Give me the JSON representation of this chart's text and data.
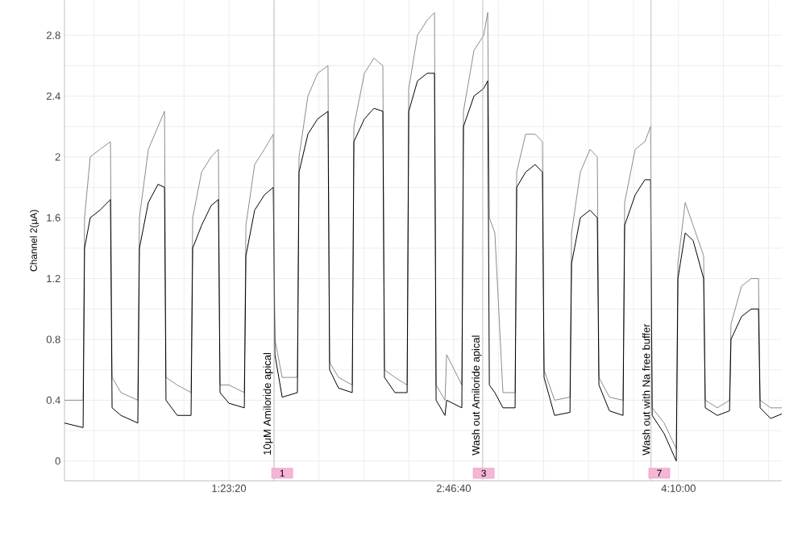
{
  "chart_data": {
    "type": "line",
    "ylabel": "Channel 2(μA)",
    "x": [
      0.373,
      0.488,
      0.497,
      0.532,
      0.592,
      0.657,
      0.667,
      0.722,
      0.826,
      0.836,
      0.891,
      0.951,
      0.991,
      1.0,
      1.07,
      1.155,
      1.165,
      1.22,
      1.279,
      1.324,
      1.334,
      1.389,
      1.484,
      1.494,
      1.548,
      1.608,
      1.663,
      1.673,
      1.718,
      1.812,
      1.822,
      1.877,
      1.937,
      2.001,
      2.011,
      2.066,
      2.151,
      2.161,
      2.226,
      2.285,
      2.34,
      2.35,
      2.415,
      2.49,
      2.5,
      2.554,
      2.614,
      2.659,
      2.669,
      2.724,
      2.734,
      2.828,
      2.838,
      2.903,
      2.963,
      2.988,
      2.998,
      3.032,
      3.082,
      3.157,
      3.167,
      3.222,
      3.281,
      3.326,
      3.336,
      3.401,
      3.496,
      3.506,
      3.56,
      3.62,
      3.665,
      3.675,
      3.74,
      3.824,
      3.834,
      3.899,
      3.959,
      3.994,
      4.004,
      4.078,
      4.153,
      4.163,
      4.208,
      4.257,
      4.322,
      4.332,
      4.407,
      4.482,
      4.491,
      4.556,
      4.616,
      4.661,
      4.671,
      4.736,
      4.805
    ],
    "series": [
      {
        "color": "#8c8c8c",
        "values": [
          0.4,
          0.4,
          1.6,
          2.0,
          2.05,
          2.1,
          0.55,
          0.45,
          0.4,
          1.6,
          2.05,
          2.2,
          2.3,
          0.55,
          0.5,
          0.45,
          1.6,
          1.9,
          2.0,
          2.05,
          0.5,
          0.5,
          0.45,
          1.55,
          1.95,
          2.05,
          2.15,
          0.8,
          0.55,
          0.55,
          2.0,
          2.4,
          2.55,
          2.6,
          0.65,
          0.55,
          0.5,
          2.2,
          2.55,
          2.65,
          2.6,
          0.6,
          0.55,
          0.5,
          2.45,
          2.8,
          2.9,
          2.95,
          0.5,
          0.4,
          0.7,
          0.5,
          2.3,
          2.7,
          2.8,
          2.95,
          1.6,
          1.5,
          0.45,
          0.45,
          1.9,
          2.15,
          2.15,
          2.1,
          0.6,
          0.4,
          0.42,
          1.5,
          1.9,
          2.05,
          2.0,
          0.55,
          0.42,
          0.4,
          1.7,
          2.05,
          2.1,
          2.2,
          0.35,
          0.25,
          0.08,
          1.3,
          1.7,
          1.55,
          1.35,
          0.4,
          0.35,
          0.4,
          0.9,
          1.15,
          1.2,
          1.2,
          0.4,
          0.35,
          0.35
        ]
      },
      {
        "color": "#000000",
        "values": [
          0.25,
          0.22,
          1.4,
          1.6,
          1.65,
          1.72,
          0.35,
          0.3,
          0.25,
          1.4,
          1.7,
          1.82,
          1.8,
          0.4,
          0.3,
          0.3,
          1.4,
          1.55,
          1.68,
          1.72,
          0.45,
          0.38,
          0.35,
          1.35,
          1.65,
          1.75,
          1.8,
          0.7,
          0.42,
          0.45,
          1.9,
          2.15,
          2.25,
          2.3,
          0.6,
          0.48,
          0.45,
          2.1,
          2.25,
          2.32,
          2.3,
          0.55,
          0.45,
          0.45,
          2.3,
          2.5,
          2.55,
          2.55,
          0.4,
          0.3,
          0.4,
          0.35,
          2.2,
          2.4,
          2.45,
          2.5,
          0.5,
          0.45,
          0.35,
          0.35,
          1.8,
          1.9,
          1.95,
          1.9,
          0.55,
          0.3,
          0.32,
          1.3,
          1.6,
          1.65,
          1.6,
          0.5,
          0.33,
          0.3,
          1.55,
          1.75,
          1.85,
          1.85,
          0.3,
          0.18,
          0.0,
          1.2,
          1.5,
          1.45,
          1.2,
          0.35,
          0.3,
          0.33,
          0.8,
          0.95,
          1.0,
          1.0,
          0.35,
          0.28,
          0.31
        ]
      }
    ],
    "xlim": [
      0.373,
      4.805
    ],
    "ylim": [
      -0.13,
      3.03
    ],
    "xticks": [
      {
        "value": 0.5556,
        "label": null
      },
      {
        "value": 0.8333,
        "label": null
      },
      {
        "value": 1.1111,
        "label": null
      },
      {
        "value": 1.3889,
        "label": "1:23:20"
      },
      {
        "value": 1.6667,
        "label": null
      },
      {
        "value": 1.9444,
        "label": null
      },
      {
        "value": 2.2222,
        "label": null
      },
      {
        "value": 2.5,
        "label": null
      },
      {
        "value": 2.7778,
        "label": "2:46:40"
      },
      {
        "value": 3.0556,
        "label": null
      },
      {
        "value": 3.3333,
        "label": null
      },
      {
        "value": 3.6111,
        "label": null
      },
      {
        "value": 3.8889,
        "label": null
      },
      {
        "value": 4.1667,
        "label": "4:10:00"
      },
      {
        "value": 4.4444,
        "label": null
      },
      {
        "value": 4.7222,
        "label": null
      }
    ],
    "yticks": [
      0,
      {
        "value": 0.2,
        "label": null
      },
      0.4,
      {
        "value": 0.6,
        "label": null
      },
      0.8,
      {
        "value": 1.0,
        "label": null
      },
      1.2,
      {
        "value": 1.4,
        "label": null
      },
      1.6,
      {
        "value": 1.8,
        "label": null
      },
      2,
      {
        "value": 2.2,
        "label": null
      },
      2.4,
      {
        "value": 2.6,
        "label": null
      },
      2.8
    ],
    "grid": true,
    "line_style": "solid",
    "ref_lines": [
      {
        "axis": "x",
        "value": 1.668,
        "label": "10μM Amiloride apical",
        "color": "#b0b0b0"
      },
      {
        "axis": "x",
        "value": 2.957,
        "label": "Wash out Amiloride apical",
        "color": "#b0b0b0"
      },
      {
        "axis": "x",
        "value": 3.997,
        "label": "Wash out with Na free buffer",
        "color": "#b0b0b0"
      }
    ],
    "annotations": [
      {
        "text": "1",
        "x": 1.718,
        "y": -0.08
      },
      {
        "text": "3",
        "x": 2.963,
        "y": -0.08
      },
      {
        "text": "7",
        "x": 4.048,
        "y": -0.08
      }
    ]
  }
}
